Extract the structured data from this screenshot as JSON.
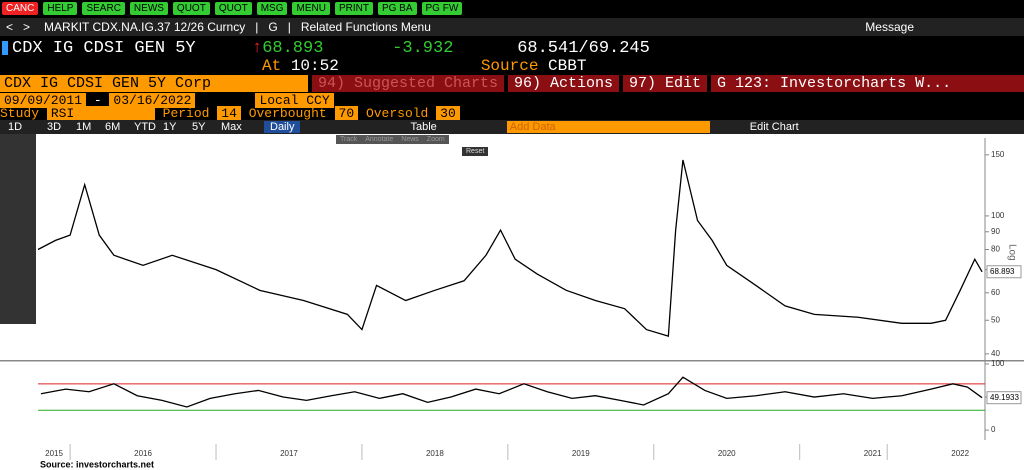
{
  "buttons": [
    "CANC",
    "HELP",
    "SEARC",
    "NEWS",
    "QUOT",
    "QUOT",
    "MSG",
    "MENU",
    "PRINT",
    "PG BA",
    "PG FW"
  ],
  "nav": {
    "ticker": "MARKIT CDX.NA.IG.37 12/26 Curncy",
    "g": "G",
    "related": "Related Functions Menu",
    "message": "Message"
  },
  "quote": {
    "name": "CDX IG CDSI GEN 5Y",
    "last": "68.893",
    "change": "-3.932",
    "bid": "68.541",
    "ask": "69.245",
    "time_label": "At",
    "time": "10:52",
    "source_label": "Source",
    "source": "CBBT"
  },
  "menu": {
    "security": "CDX IG CDSI GEN 5Y Corp",
    "suggested": "94) Suggested Charts",
    "actions": "96) Actions",
    "edit": "97) Edit",
    "page": "G 123: Investorcharts W..."
  },
  "range": {
    "start": "09/09/2011",
    "end": "03/16/2022",
    "currency": "Local CCY"
  },
  "study": {
    "label": "Study",
    "name": "RSI",
    "period_label": "Period",
    "period": 14,
    "overbought_label": "Overbought",
    "overbought": 70,
    "oversold_label": "Oversold",
    "oversold": 30
  },
  "periods": [
    "1D",
    "3D",
    "1M",
    "6M",
    "YTD",
    "1Y",
    "5Y",
    "Max"
  ],
  "frequency": "Daily",
  "table": "Table",
  "add_data": "Add Data",
  "edit_chart": "Edit Chart",
  "popup": [
    "Track",
    "Annotate",
    "News",
    "Zoom",
    "Reset"
  ],
  "source": "Source:  investorcharts.net",
  "chart_data": [
    {
      "type": "line",
      "log": true,
      "axis_label": "Log",
      "last_label": "68.893",
      "color": "#000000",
      "x": [
        2015.78,
        2015.9,
        2016.0,
        2016.1,
        2016.2,
        2016.3,
        2016.5,
        2016.7,
        2017.0,
        2017.3,
        2017.6,
        2017.9,
        2018.0,
        2018.1,
        2018.3,
        2018.5,
        2018.7,
        2018.85,
        2018.95,
        2019.05,
        2019.2,
        2019.4,
        2019.6,
        2019.8,
        2019.95,
        2020.1,
        2020.15,
        2020.2,
        2020.3,
        2020.4,
        2020.5,
        2020.7,
        2020.9,
        2021.1,
        2021.4,
        2021.7,
        2021.9,
        2022.0,
        2022.1,
        2022.2,
        2022.25
      ],
      "values": [
        80,
        85,
        88,
        123,
        88,
        77,
        72,
        77,
        70,
        61,
        57,
        52,
        47,
        63,
        57,
        61,
        65,
        77,
        91,
        75,
        68,
        61,
        57,
        54,
        47,
        45,
        91,
        145,
        97,
        85,
        72,
        63,
        55,
        52,
        51,
        49,
        49,
        50,
        61,
        75,
        69
      ],
      "xlim": [
        2015.78,
        2022.27
      ],
      "ylim": [
        38.4,
        157
      ],
      "yticks": [
        40,
        50,
        60,
        70,
        80,
        90,
        100,
        150
      ],
      "xticks": [
        {
          "value": 2015.89,
          "label": "2015"
        },
        {
          "value": 2016.5,
          "label": "2016"
        },
        {
          "value": 2017.5,
          "label": "2017"
        },
        {
          "value": 2018.5,
          "label": "2018"
        },
        {
          "value": 2019.5,
          "label": "2019"
        },
        {
          "value": 2020.5,
          "label": "2020"
        },
        {
          "value": 2021.5,
          "label": "2021"
        },
        {
          "value": 2022.1,
          "label": "2022"
        }
      ]
    },
    {
      "type": "line",
      "last_label": "49.1933",
      "color": "#000000",
      "x": [
        2015.8,
        2015.97,
        2016.13,
        2016.3,
        2016.46,
        2016.63,
        2016.8,
        2016.96,
        2017.13,
        2017.29,
        2017.46,
        2017.62,
        2017.79,
        2017.95,
        2018.12,
        2018.28,
        2018.45,
        2018.61,
        2018.78,
        2018.94,
        2019.11,
        2019.27,
        2019.44,
        2019.6,
        2019.77,
        2019.93,
        2020.1,
        2020.2,
        2020.35,
        2020.5,
        2020.7,
        2020.9,
        2021.1,
        2021.3,
        2021.5,
        2021.7,
        2021.9,
        2022.05,
        2022.15,
        2022.25
      ],
      "values": [
        55,
        62,
        58,
        70,
        52,
        45,
        35,
        48,
        55,
        60,
        50,
        45,
        52,
        58,
        48,
        55,
        42,
        50,
        62,
        55,
        70,
        58,
        48,
        52,
        45,
        38,
        55,
        80,
        60,
        48,
        52,
        58,
        50,
        55,
        48,
        52,
        62,
        70,
        65,
        49
      ],
      "xlim": [
        2015.78,
        2022.27
      ],
      "ylim": [
        -15,
        103
      ],
      "yticks": [
        0,
        50,
        100
      ]
    }
  ]
}
